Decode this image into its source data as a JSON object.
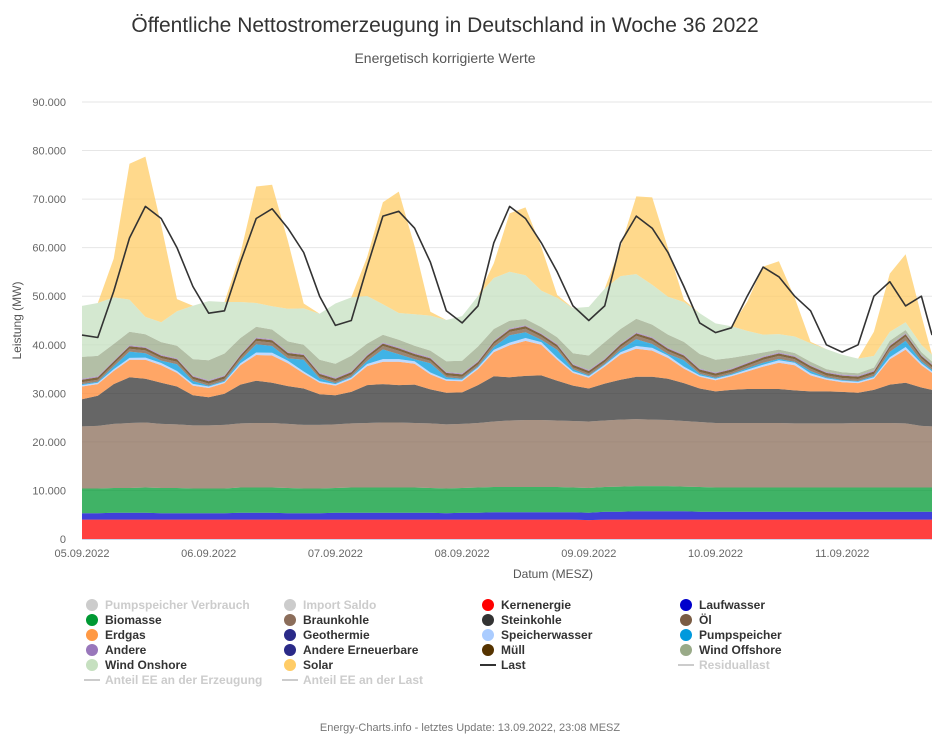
{
  "chart_data": {
    "type": "area",
    "stacked": true,
    "title": "Öffentliche Nettostromerzeugung in Deutschland in Woche 36 2022",
    "subtitle": "Energetisch korrigierte Werte",
    "xlabel": "Datum (MESZ)",
    "ylabel": "Leistung (MW)",
    "ylim": [
      0,
      90000
    ],
    "yticks": [
      0,
      10000,
      20000,
      30000,
      40000,
      50000,
      60000,
      70000,
      80000,
      90000
    ],
    "ytick_labels": [
      "0",
      "10.000",
      "20.000",
      "30.000",
      "40.000",
      "50.000",
      "60.000",
      "70.000",
      "80.000",
      "90.000"
    ],
    "x_unit": "hours since 05.09.2022 00:00",
    "xlim": [
      0,
      161
    ],
    "xticks": [
      0,
      24,
      48,
      72,
      96,
      120,
      144
    ],
    "xtick_labels": [
      "05.09.2022",
      "06.09.2022",
      "07.09.2022",
      "08.09.2022",
      "09.09.2022",
      "10.09.2022",
      "11.09.2022"
    ],
    "grid": true,
    "legend_position": "bottom",
    "x": [
      0,
      3,
      6,
      9,
      12,
      15,
      18,
      21,
      24,
      27,
      30,
      33,
      36,
      39,
      42,
      45,
      48,
      51,
      54,
      57,
      60,
      63,
      66,
      69,
      72,
      75,
      78,
      81,
      84,
      87,
      90,
      93,
      96,
      99,
      102,
      105,
      108,
      111,
      114,
      117,
      120,
      123,
      126,
      129,
      132,
      135,
      138,
      141,
      144,
      147,
      150,
      153,
      156,
      159,
      161
    ],
    "series": [
      {
        "name": "Kernenergie",
        "color": "#ff0000",
        "values": [
          4000,
          4000,
          4000,
          4000,
          4000,
          4000,
          4000,
          4000,
          4000,
          4000,
          4000,
          4000,
          4000,
          4000,
          4000,
          4000,
          4000,
          4000,
          4000,
          4000,
          4000,
          4000,
          4000,
          4000,
          4000,
          4000,
          4000,
          4000,
          4000,
          4000,
          4000,
          4000,
          3900,
          4000,
          4000,
          4000,
          4000,
          4000,
          4000,
          4000,
          4000,
          4000,
          4000,
          4000,
          4000,
          4000,
          4000,
          4000,
          4000,
          4000,
          4000,
          4000,
          4000,
          4000,
          4000
        ]
      },
      {
        "name": "Laufwasser",
        "color": "#0000cc",
        "values": [
          1300,
          1300,
          1400,
          1400,
          1400,
          1300,
          1300,
          1300,
          1300,
          1300,
          1400,
          1400,
          1400,
          1300,
          1300,
          1300,
          1400,
          1400,
          1400,
          1400,
          1400,
          1400,
          1400,
          1300,
          1400,
          1400,
          1500,
          1500,
          1500,
          1500,
          1500,
          1500,
          1500,
          1600,
          1600,
          1700,
          1700,
          1700,
          1700,
          1600,
          1600,
          1600,
          1600,
          1600,
          1600,
          1600,
          1600,
          1600,
          1600,
          1600,
          1600,
          1600,
          1600,
          1600,
          1600
        ]
      },
      {
        "name": "Biomasse",
        "color": "#009933",
        "values": [
          5100,
          5100,
          5100,
          5100,
          5200,
          5200,
          5200,
          5100,
          5100,
          5100,
          5200,
          5200,
          5200,
          5200,
          5100,
          5100,
          5100,
          5200,
          5200,
          5200,
          5200,
          5200,
          5100,
          5100,
          5100,
          5200,
          5200,
          5200,
          5200,
          5200,
          5200,
          5100,
          5100,
          5100,
          5200,
          5200,
          5200,
          5200,
          5100,
          5100,
          5000,
          5000,
          5000,
          5000,
          5000,
          5000,
          5000,
          5000,
          5000,
          5000,
          5000,
          5000,
          5000,
          5000,
          5000
        ]
      },
      {
        "name": "Braunkohle",
        "color": "#8b6d5a",
        "values": [
          12800,
          12900,
          13200,
          13400,
          13400,
          13200,
          13100,
          13000,
          13000,
          13100,
          13200,
          13300,
          13300,
          13200,
          13100,
          13100,
          13100,
          13200,
          13300,
          13400,
          13400,
          13300,
          13300,
          13200,
          13200,
          13300,
          13500,
          13700,
          13800,
          13800,
          13700,
          13700,
          13700,
          13700,
          13800,
          13800,
          13700,
          13600,
          13500,
          13400,
          13300,
          13300,
          13300,
          13300,
          13300,
          13200,
          13200,
          13200,
          13200,
          13300,
          13300,
          13300,
          13200,
          12700,
          12600
        ]
      },
      {
        "name": "Steinkohle",
        "color": "#333333",
        "values": [
          5600,
          6200,
          8200,
          9400,
          9000,
          8500,
          7800,
          6200,
          5800,
          6400,
          8000,
          8700,
          8300,
          7800,
          7500,
          6300,
          6000,
          6500,
          7800,
          7900,
          7700,
          7900,
          7000,
          6500,
          6500,
          7800,
          9300,
          8900,
          9100,
          9200,
          8200,
          7300,
          6800,
          7600,
          8200,
          8700,
          8800,
          8500,
          7800,
          6900,
          6500,
          6800,
          7000,
          7000,
          7000,
          6800,
          6600,
          6600,
          6500,
          6200,
          6800,
          7900,
          8400,
          7900,
          7500
        ]
      },
      {
        "name": "Erdgas",
        "color": "#ff8833",
        "values": [
          2600,
          2400,
          2700,
          3600,
          3900,
          3600,
          2800,
          2000,
          1900,
          2200,
          4000,
          5300,
          5600,
          4700,
          3100,
          2400,
          2000,
          2600,
          3900,
          4600,
          4800,
          4300,
          3100,
          2500,
          2300,
          3300,
          5000,
          6600,
          7200,
          6300,
          4300,
          2600,
          2200,
          3500,
          5200,
          5800,
          5400,
          4300,
          3000,
          2400,
          2300,
          2800,
          3600,
          4600,
          5400,
          5200,
          3300,
          2400,
          2000,
          2000,
          2300,
          5200,
          6800,
          4600,
          3500
        ]
      },
      {
        "name": "Speicherwasser",
        "color": "#aaccff",
        "values": [
          300,
          300,
          350,
          400,
          450,
          450,
          400,
          350,
          300,
          300,
          400,
          500,
          550,
          500,
          400,
          300,
          300,
          350,
          450,
          550,
          550,
          500,
          400,
          300,
          300,
          350,
          450,
          550,
          600,
          550,
          450,
          350,
          300,
          350,
          450,
          550,
          550,
          500,
          400,
          300,
          300,
          300,
          350,
          400,
          500,
          500,
          400,
          300,
          300,
          300,
          300,
          450,
          550,
          400,
          350
        ]
      },
      {
        "name": "Pumpspeicher",
        "color": "#0099dd",
        "values": [
          200,
          200,
          600,
          1300,
          900,
          500,
          1400,
          600,
          200,
          200,
          600,
          1700,
          1400,
          500,
          2400,
          600,
          200,
          200,
          600,
          2000,
          1000,
          400,
          1900,
          400,
          200,
          200,
          600,
          1500,
          1200,
          500,
          1600,
          400,
          200,
          200,
          500,
          1400,
          800,
          300,
          1300,
          300,
          200,
          200,
          300,
          400,
          300,
          200,
          500,
          200,
          150,
          150,
          300,
          1100,
          1300,
          400,
          300
        ]
      },
      {
        "name": "Öl",
        "color": "#7a5c44",
        "values": [
          400,
          400,
          500,
          600,
          600,
          500,
          500,
          400,
          400,
          400,
          500,
          700,
          700,
          600,
          500,
          400,
          400,
          400,
          600,
          700,
          700,
          600,
          500,
          400,
          400,
          400,
          600,
          700,
          700,
          600,
          500,
          400,
          400,
          400,
          600,
          700,
          700,
          600,
          500,
          400,
          400,
          400,
          500,
          600,
          600,
          500,
          500,
          400,
          400,
          400,
          400,
          700,
          800,
          600,
          500
        ]
      },
      {
        "name": "Müll",
        "color": "#553300",
        "values": [
          500,
          500,
          500,
          500,
          500,
          500,
          500,
          500,
          500,
          500,
          500,
          500,
          500,
          500,
          500,
          500,
          500,
          500,
          500,
          500,
          500,
          500,
          500,
          500,
          500,
          500,
          500,
          500,
          500,
          500,
          500,
          500,
          500,
          500,
          500,
          500,
          500,
          500,
          500,
          500,
          500,
          500,
          500,
          500,
          500,
          500,
          500,
          500,
          500,
          500,
          500,
          500,
          500,
          500,
          500
        ]
      },
      {
        "name": "Andere",
        "color": "#9977bb",
        "values": [
          200,
          200,
          200,
          200,
          200,
          200,
          200,
          200,
          200,
          200,
          200,
          200,
          200,
          200,
          200,
          200,
          200,
          200,
          200,
          200,
          200,
          200,
          200,
          200,
          200,
          200,
          200,
          200,
          200,
          200,
          200,
          200,
          200,
          200,
          200,
          200,
          200,
          200,
          200,
          200,
          200,
          200,
          200,
          200,
          200,
          200,
          200,
          200,
          200,
          200,
          200,
          200,
          200,
          200,
          200
        ]
      },
      {
        "name": "Wind Offshore",
        "color": "#99aa88",
        "values": [
          4500,
          4200,
          3400,
          2800,
          2600,
          2600,
          2600,
          3400,
          4100,
          4500,
          3400,
          2200,
          2000,
          2200,
          1900,
          2700,
          2900,
          3200,
          2300,
          1600,
          1600,
          1500,
          1400,
          2200,
          2600,
          3000,
          2400,
          1600,
          1300,
          1300,
          1400,
          2200,
          3000,
          3400,
          3000,
          2800,
          2600,
          2700,
          2600,
          3000,
          2600,
          2200,
          1500,
          800,
          600,
          600,
          700,
          600,
          500,
          500,
          600,
          900,
          700,
          600,
          500
        ]
      },
      {
        "name": "Wind Onshore",
        "color": "#c6e0c0",
        "values": [
          10500,
          10900,
          9600,
          6600,
          3600,
          4100,
          7100,
          11000,
          12200,
          10600,
          7400,
          4900,
          4800,
          6700,
          7500,
          9500,
          12400,
          12000,
          9800,
          6300,
          5500,
          6500,
          7200,
          8500,
          9200,
          10400,
          10500,
          10100,
          9000,
          7500,
          8100,
          9300,
          10000,
          11000,
          10900,
          9200,
          8200,
          7800,
          8200,
          8400,
          7500,
          6500,
          5000,
          3700,
          3200,
          3400,
          3800,
          4100,
          3600,
          3000,
          2400,
          1800,
          1600,
          1500,
          1400
        ]
      },
      {
        "name": "Solar",
        "color": "#ffcc66",
        "values": [
          0,
          0,
          8000,
          28000,
          33000,
          20000,
          2500,
          0,
          0,
          0,
          10000,
          24000,
          25000,
          14000,
          1000,
          0,
          0,
          0,
          8000,
          21000,
          25000,
          14000,
          800,
          0,
          0,
          0,
          3000,
          12000,
          14000,
          9000,
          600,
          0,
          0,
          0,
          6000,
          16000,
          18000,
          10000,
          500,
          0,
          0,
          0,
          6000,
          14000,
          15000,
          8000,
          300,
          0,
          0,
          0,
          5000,
          12000,
          14000,
          6000,
          0
        ]
      },
      {
        "name": "Last",
        "color": "#333333",
        "type": "line",
        "values": [
          42000,
          41500,
          51000,
          62000,
          68500,
          66000,
          60000,
          52000,
          46500,
          47000,
          57000,
          66000,
          68000,
          64000,
          59000,
          50000,
          44000,
          45000,
          56000,
          66500,
          67500,
          64000,
          57000,
          47000,
          44500,
          48000,
          61000,
          68500,
          66000,
          61000,
          55000,
          48000,
          45000,
          48000,
          61000,
          66500,
          64000,
          59000,
          52000,
          44500,
          42500,
          43500,
          50000,
          56000,
          54000,
          50000,
          47000,
          40000,
          38500,
          40000,
          50000,
          53000,
          48000,
          50000,
          42000
        ]
      }
    ],
    "legend": [
      {
        "name": "Pumpspeicher Verbrauch",
        "color": "#cccccc",
        "symbol": "circle",
        "visible": false
      },
      {
        "name": "Import Saldo",
        "color": "#cccccc",
        "symbol": "circle",
        "visible": false
      },
      {
        "name": "Kernenergie",
        "color": "#ff0000",
        "symbol": "circle",
        "visible": true
      },
      {
        "name": "Laufwasser",
        "color": "#0000cc",
        "symbol": "circle",
        "visible": true
      },
      {
        "name": "Biomasse",
        "color": "#009933",
        "symbol": "circle",
        "visible": true
      },
      {
        "name": "Braunkohle",
        "color": "#8b6d5a",
        "symbol": "circle",
        "visible": true
      },
      {
        "name": "Steinkohle",
        "color": "#333333",
        "symbol": "circle",
        "visible": true
      },
      {
        "name": "Öl",
        "color": "#7a5c44",
        "symbol": "circle",
        "visible": true
      },
      {
        "name": "Erdgas",
        "color": "#ff9944",
        "symbol": "circle",
        "visible": true
      },
      {
        "name": "Geothermie",
        "color": "#2a2a88",
        "symbol": "circle",
        "visible": true
      },
      {
        "name": "Speicherwasser",
        "color": "#aaccff",
        "symbol": "circle",
        "visible": true
      },
      {
        "name": "Pumpspeicher",
        "color": "#0099dd",
        "symbol": "circle",
        "visible": true
      },
      {
        "name": "Andere",
        "color": "#9977bb",
        "symbol": "circle",
        "visible": true
      },
      {
        "name": "Andere Erneuerbare",
        "color": "#2a2a88",
        "symbol": "circle",
        "visible": true
      },
      {
        "name": "Müll",
        "color": "#553300",
        "symbol": "circle",
        "visible": true
      },
      {
        "name": "Wind Offshore",
        "color": "#99aa88",
        "symbol": "circle",
        "visible": true
      },
      {
        "name": "Wind Onshore",
        "color": "#c6e0c0",
        "symbol": "circle",
        "visible": true
      },
      {
        "name": "Solar",
        "color": "#ffcc66",
        "symbol": "circle",
        "visible": true
      },
      {
        "name": "Last",
        "color": "#333333",
        "symbol": "line",
        "visible": true
      },
      {
        "name": "Residuallast",
        "color": "#cccccc",
        "symbol": "line",
        "visible": false
      },
      {
        "name": "Anteil EE an der Erzeugung",
        "color": "#cccccc",
        "symbol": "line",
        "visible": false
      },
      {
        "name": "Anteil EE an der Last",
        "color": "#cccccc",
        "symbol": "line",
        "visible": false
      }
    ]
  },
  "credits": "Energy-Charts.info - letztes Update: 13.09.2022, 23:08 MESZ"
}
